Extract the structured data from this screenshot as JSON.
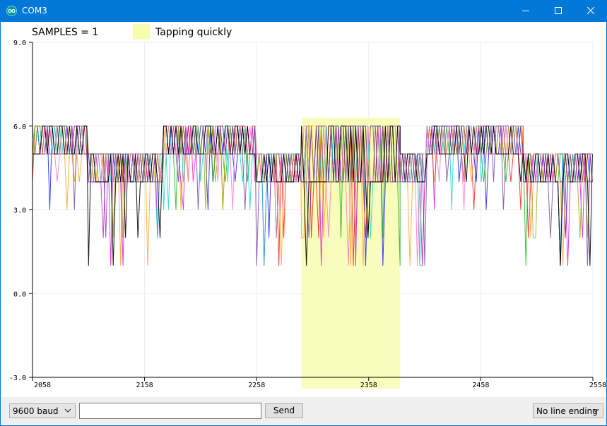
{
  "window": {
    "title": "COM3"
  },
  "legend": {
    "samples_label": "SAMPLES = 1",
    "series_label": "Tapping quickly",
    "series_color": "#f7fdaf"
  },
  "chart_data": {
    "type": "line",
    "title": "",
    "xlabel": "",
    "ylabel": "",
    "xlim": [
      2058,
      2558
    ],
    "ylim": [
      -3.0,
      9.0
    ],
    "x_ticks": [
      "2058",
      "2158",
      "2258",
      "2358",
      "2458",
      "2558"
    ],
    "y_ticks": [
      "9.0",
      "6.0",
      "3.0",
      "0.0",
      "-3.0"
    ],
    "highlight_region": {
      "x_start": 2298,
      "x_end": 2386,
      "y_top": 6.3
    },
    "series": [
      {
        "name": "Tapping quickly",
        "color": "#f7fdaf",
        "segments": [
          {
            "x_start": 2058,
            "x_end": 2108,
            "high": 6,
            "low": 5,
            "dip": 3
          },
          {
            "x_start": 2108,
            "x_end": 2175,
            "high": 5,
            "low": 4,
            "dip": 1
          },
          {
            "x_start": 2175,
            "x_end": 2258,
            "high": 6,
            "low": 5,
            "dip": 3
          },
          {
            "x_start": 2258,
            "x_end": 2298,
            "high": 5,
            "low": 4,
            "dip": 1
          },
          {
            "x_start": 2298,
            "x_end": 2386,
            "high": 6,
            "low": 4,
            "dip": 1
          },
          {
            "x_start": 2386,
            "x_end": 2410,
            "high": 5,
            "low": 4,
            "dip": 1
          },
          {
            "x_start": 2410,
            "x_end": 2496,
            "high": 6,
            "low": 5,
            "dip": 3
          },
          {
            "x_start": 2496,
            "x_end": 2558,
            "high": 5,
            "low": 4,
            "dip": 1
          }
        ]
      }
    ]
  },
  "bottom_bar": {
    "baud": "9600 baud",
    "input_value": "",
    "send_label": "Send",
    "line_ending": "No line ending"
  },
  "colors": {
    "trace_palette": [
      "#ff0000",
      "#0000ff",
      "#00aa00",
      "#ff9900",
      "#cc00cc",
      "#00cccc",
      "#999900",
      "#ff66cc",
      "#663399",
      "#000000"
    ]
  }
}
